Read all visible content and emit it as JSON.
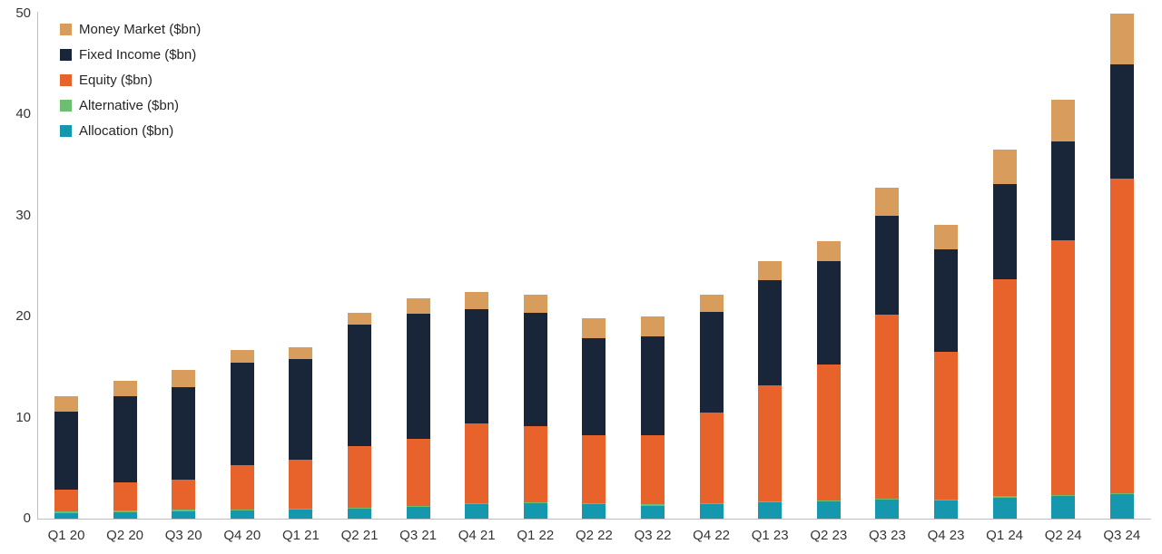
{
  "chart_data": {
    "type": "bar",
    "stacked": true,
    "title": "",
    "xlabel": "",
    "ylabel": "",
    "ylim": [
      0,
      50
    ],
    "yticks": [
      0,
      10,
      20,
      30,
      40,
      50
    ],
    "grid": false,
    "axis_color": "#BFBFBF",
    "label_color": "#353535",
    "legend": {
      "position": "top-left",
      "items": [
        "Money Market ($bn)",
        "Fixed Income ($bn)",
        "Equity ($bn)",
        "Alternative ($bn)",
        "Allocation ($bn)"
      ]
    },
    "categories": [
      "Q1 20",
      "Q2 20",
      "Q3 20",
      "Q4 20",
      "Q1 21",
      "Q2 21",
      "Q3 21",
      "Q4 21",
      "Q1 22",
      "Q2 22",
      "Q3 22",
      "Q4 22",
      "Q1 23",
      "Q2 23",
      "Q3 23",
      "Q4 23",
      "Q1 24",
      "Q2 24",
      "Q3 24"
    ],
    "series": [
      {
        "name": "Allocation ($bn)",
        "color": "#1598AE",
        "values": [
          0.5,
          0.6,
          0.7,
          0.8,
          0.9,
          1.0,
          1.2,
          1.4,
          1.5,
          1.4,
          1.3,
          1.4,
          1.6,
          1.7,
          1.9,
          1.8,
          2.1,
          2.2,
          2.4
        ]
      },
      {
        "name": "Alternative ($bn)",
        "color": "#6CBF70",
        "values": [
          0.2,
          0.2,
          0.2,
          0.1,
          0.1,
          0.1,
          0.1,
          0.1,
          0.1,
          0.1,
          0.1,
          0.1,
          0.1,
          0.1,
          0.1,
          0.1,
          0.1,
          0.1,
          0.1
        ]
      },
      {
        "name": "Equity ($bn)",
        "color": "#E8622B",
        "values": [
          2.2,
          2.8,
          3.0,
          4.4,
          4.8,
          6.1,
          6.6,
          7.9,
          7.6,
          6.8,
          6.9,
          9.0,
          11.5,
          13.5,
          18.2,
          14.6,
          21.5,
          25.3,
          31.2
        ]
      },
      {
        "name": "Fixed Income ($bn)",
        "color": "#192539",
        "values": [
          7.7,
          8.5,
          9.1,
          10.1,
          10.0,
          12.0,
          12.4,
          11.3,
          11.2,
          9.6,
          9.7,
          10.0,
          10.4,
          10.2,
          9.8,
          10.2,
          9.4,
          9.7,
          11.3
        ]
      },
      {
        "name": "Money Market ($bn)",
        "color": "#D89C5C",
        "values": [
          1.5,
          1.5,
          1.7,
          1.3,
          1.2,
          1.2,
          1.5,
          1.7,
          1.8,
          1.9,
          2.0,
          1.7,
          1.9,
          2.0,
          2.8,
          2.4,
          3.4,
          4.2,
          5.0
        ]
      }
    ],
    "totals": [
      12.1,
      13.6,
      14.7,
      16.7,
      17.0,
      20.4,
      21.8,
      22.4,
      22.2,
      19.8,
      20.0,
      22.2,
      25.5,
      27.5,
      32.8,
      29.1,
      36.5,
      41.5,
      50.0
    ]
  }
}
